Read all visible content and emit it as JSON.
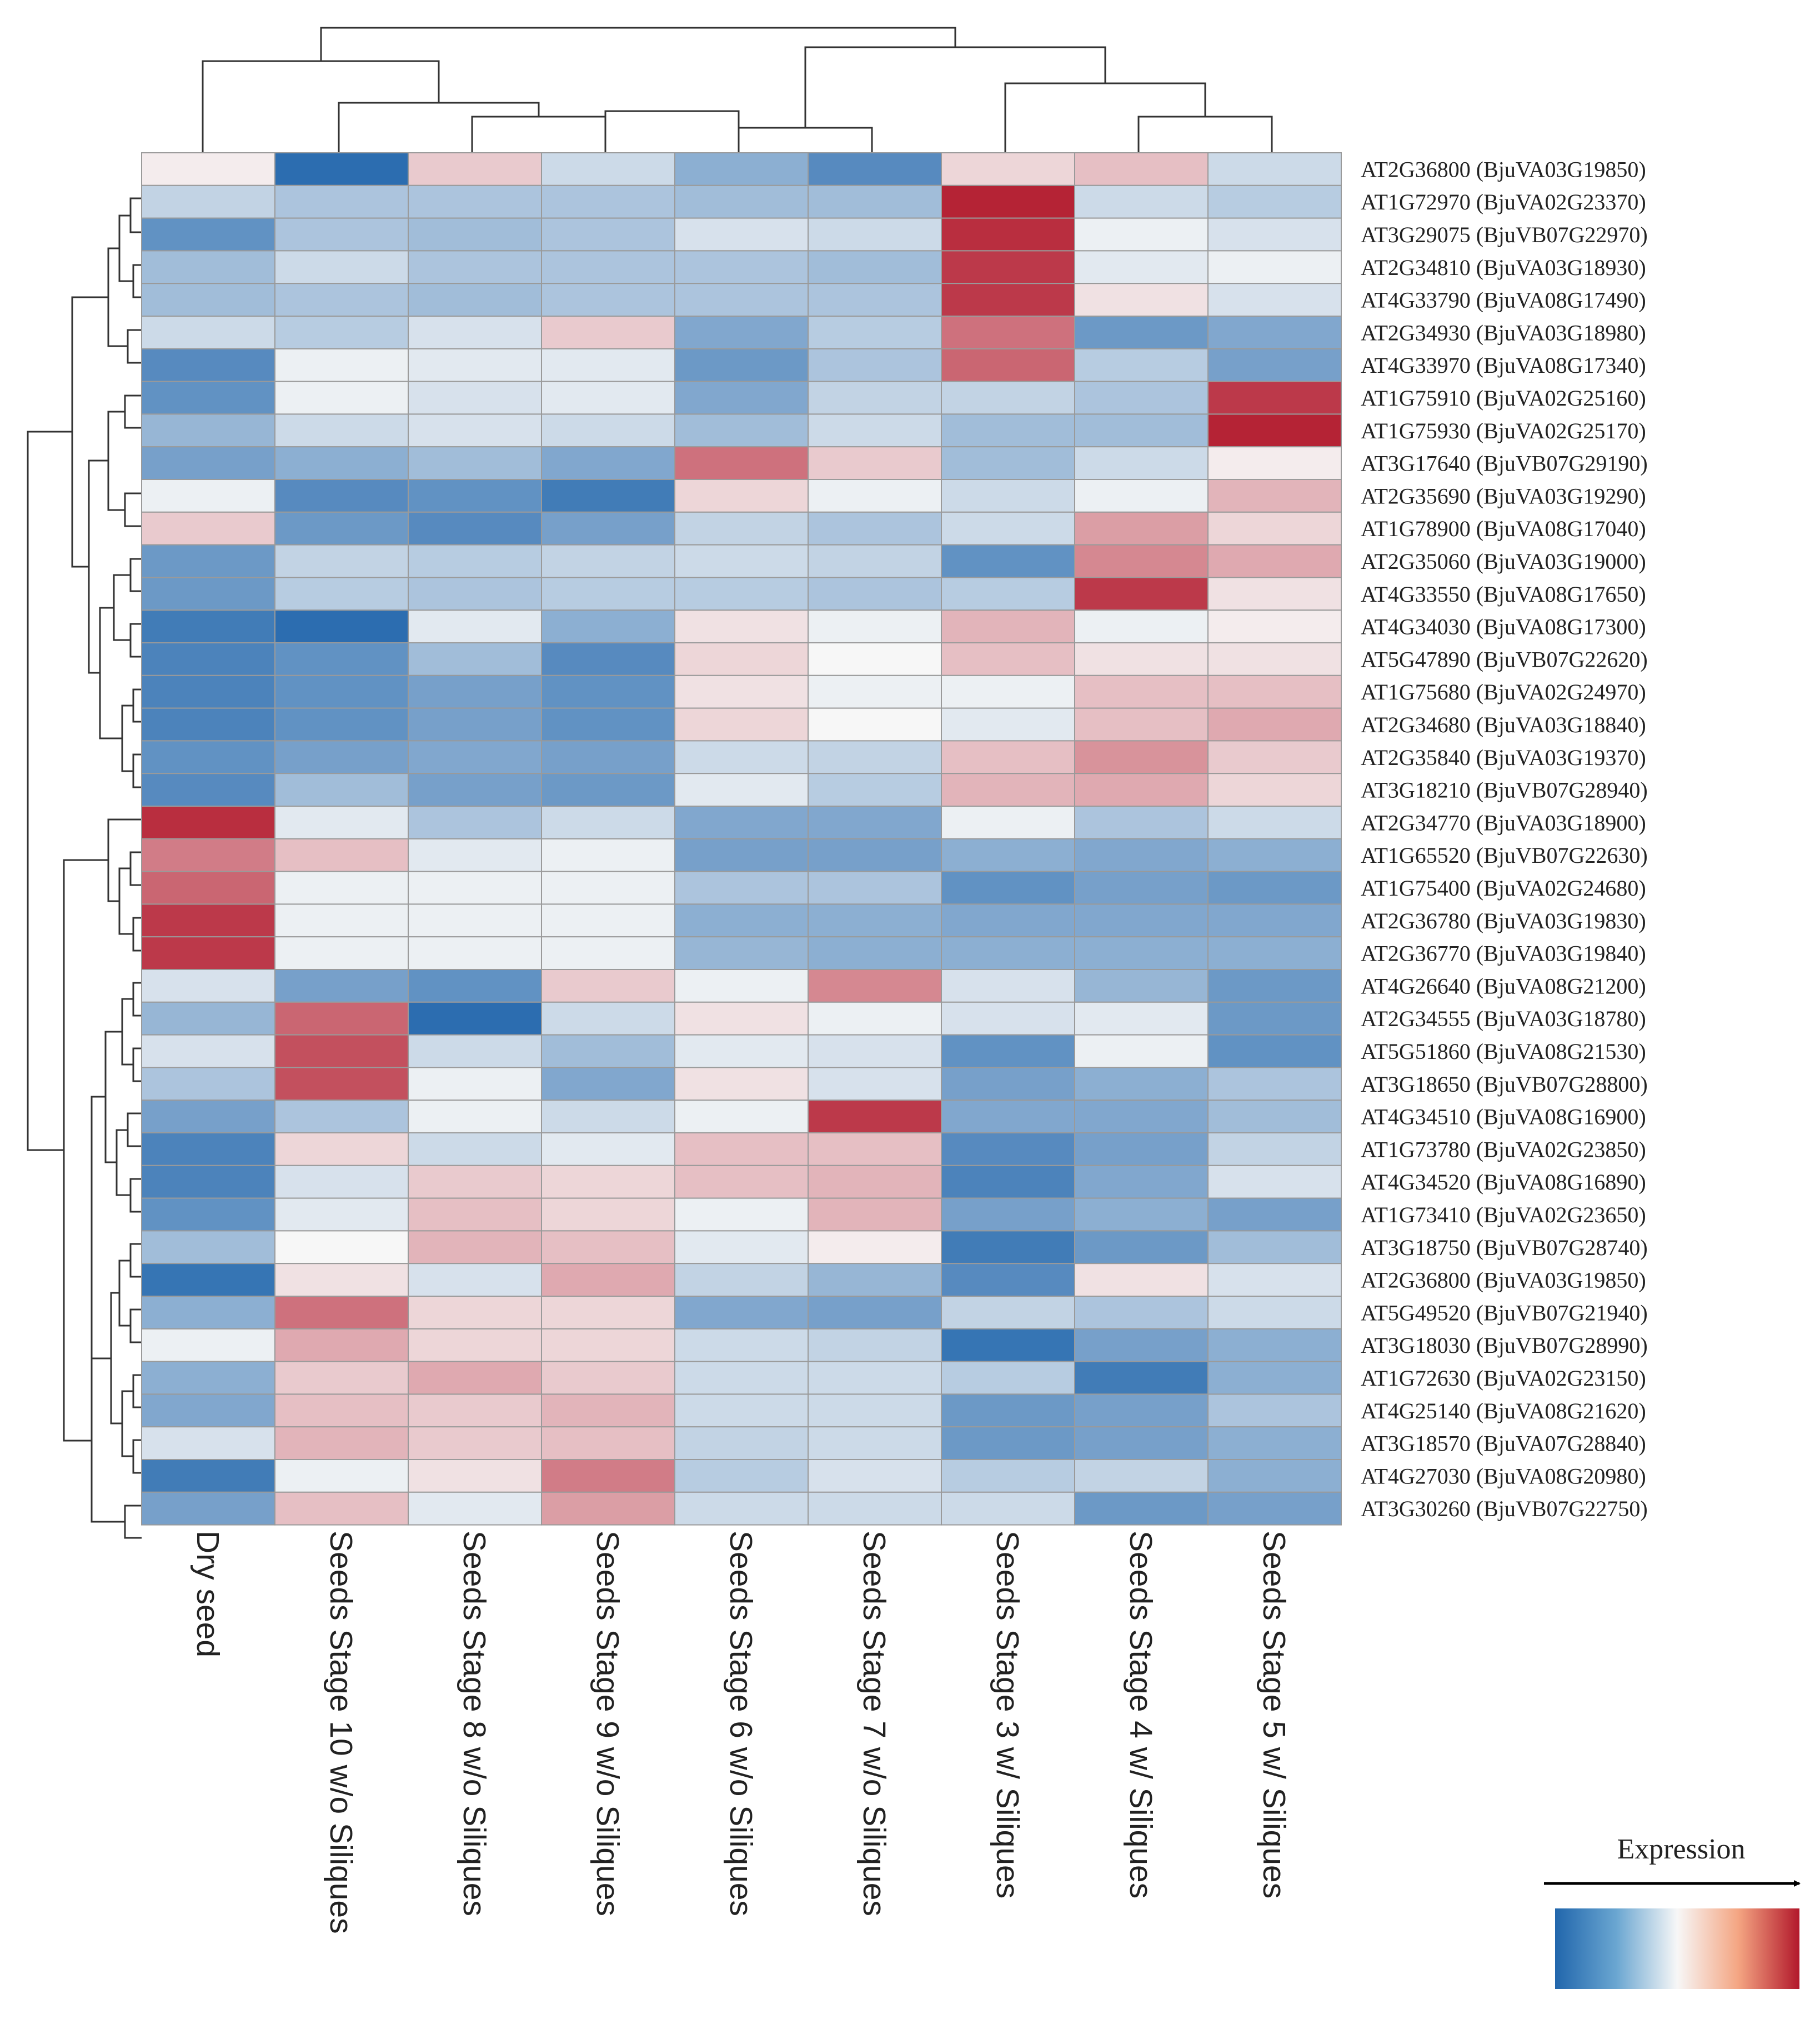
{
  "chart_data": {
    "type": "heatmap",
    "title": "",
    "legend_title": "Expression",
    "legend_position": "bottom-right",
    "color_scale": {
      "low": "#2166ac",
      "mid": "#f7f7f7",
      "high": "#b2182b"
    },
    "value_range": [
      -1,
      1
    ],
    "columns": [
      "Dry seed",
      "Seeds Stage 10 w/o Siliques",
      "Seeds Stage 8 w/o Siliques",
      "Seeds Stage 9 w/o Siliques",
      "Seeds Stage 6 w/o Siliques",
      "Seeds Stage 7 w/o Siliques",
      "Seeds Stage 3 w/ Siliques",
      "Seeds Stage 4 w/ Siliques",
      "Seeds Stage 5 w/ Siliques"
    ],
    "rows": [
      "AT2G36800 (BjuVA03G19850)",
      "AT1G72970 (BjuVA02G23370)",
      "AT3G29075 (BjuVB07G22970)",
      "AT2G34810 (BjuVA03G18930)",
      "AT4G33790 (BjuVA08G17490)",
      "AT2G34930 (BjuVA03G18980)",
      "AT4G33970 (BjuVA08G17340)",
      "AT1G75910 (BjuVA02G25160)",
      "AT1G75930 (BjuVA02G25170)",
      "AT3G17640 (BjuVB07G29190)",
      "AT2G35690 (BjuVA03G19290)",
      "AT1G78900 (BjuVA08G17040)",
      "AT2G35060 (BjuVA03G19000)",
      "AT4G33550 (BjuVA08G17650)",
      "AT4G34030 (BjuVA08G17300)",
      "AT5G47890 (BjuVB07G22620)",
      "AT1G75680 (BjuVA02G24970)",
      "AT2G34680 (BjuVA03G18840)",
      "AT2G35840 (BjuVA03G19370)",
      "AT3G18210 (BjuVB07G28940)",
      "AT2G34770 (BjuVA03G18900)",
      "AT1G65520 (BjuVB07G22630)",
      "AT1G75400 (BjuVA02G24680)",
      "AT2G36780 (BjuVA03G19830)",
      "AT2G36770 (BjuVA03G19840)",
      "AT4G26640 (BjuVA08G21200)",
      "AT2G34555 (BjuVA03G18780)",
      "AT5G51860 (BjuVA08G21530)",
      "AT3G18650 (BjuVB07G28800)",
      "AT4G34510 (BjuVA08G16900)",
      "AT1G73780 (BjuVA02G23850)",
      "AT4G34520 (BjuVA08G16890)",
      "AT1G73410 (BjuVA02G23650)",
      "AT3G18750 (BjuVB07G28740)",
      "AT2G36800 (BjuVA03G19850)",
      "AT5G49520 (BjuVB07G21940)",
      "AT3G18030 (BjuVB07G28990)",
      "AT1G72630 (BjuVA02G23150)",
      "AT4G25140 (BjuVA08G21620)",
      "AT3G18570 (BjuVA07G28840)",
      "AT4G27030 (BjuVA08G20980)",
      "AT3G30260 (BjuVB07G22750)"
    ],
    "values": [
      [
        0.05,
        -0.95,
        0.2,
        -0.2,
        -0.5,
        -0.75,
        0.15,
        0.25,
        -0.2
      ],
      [
        -0.25,
        -0.35,
        -0.35,
        -0.35,
        -0.4,
        -0.4,
        0.95,
        -0.2,
        -0.3
      ],
      [
        -0.7,
        -0.35,
        -0.4,
        -0.35,
        -0.15,
        -0.2,
        0.9,
        -0.05,
        -0.15
      ],
      [
        -0.4,
        -0.2,
        -0.35,
        -0.35,
        -0.35,
        -0.4,
        0.85,
        -0.1,
        -0.05
      ],
      [
        -0.4,
        -0.35,
        -0.4,
        -0.35,
        -0.35,
        -0.35,
        0.85,
        0.1,
        -0.15
      ],
      [
        -0.2,
        -0.3,
        -0.15,
        0.2,
        -0.55,
        -0.3,
        0.6,
        -0.65,
        -0.55
      ],
      [
        -0.75,
        -0.05,
        -0.1,
        -0.1,
        -0.65,
        -0.35,
        0.65,
        -0.3,
        -0.6
      ],
      [
        -0.7,
        -0.05,
        -0.15,
        -0.1,
        -0.55,
        -0.25,
        -0.25,
        -0.35,
        0.85
      ],
      [
        -0.45,
        -0.2,
        -0.15,
        -0.2,
        -0.4,
        -0.2,
        -0.4,
        -0.4,
        0.95
      ],
      [
        -0.6,
        -0.5,
        -0.4,
        -0.55,
        0.6,
        0.2,
        -0.4,
        -0.2,
        0.05
      ],
      [
        -0.05,
        -0.75,
        -0.7,
        -0.85,
        0.15,
        -0.05,
        -0.2,
        -0.05,
        0.3
      ],
      [
        0.2,
        -0.65,
        -0.75,
        -0.6,
        -0.25,
        -0.35,
        -0.2,
        0.4,
        0.15
      ],
      [
        -0.65,
        -0.25,
        -0.3,
        -0.25,
        -0.2,
        -0.25,
        -0.7,
        0.5,
        0.35
      ],
      [
        -0.65,
        -0.3,
        -0.35,
        -0.3,
        -0.3,
        -0.35,
        -0.3,
        0.85,
        0.1
      ],
      [
        -0.85,
        -0.95,
        -0.1,
        -0.5,
        0.1,
        -0.05,
        0.3,
        -0.05,
        0.05
      ],
      [
        -0.8,
        -0.7,
        -0.4,
        -0.75,
        0.15,
        0.0,
        0.25,
        0.1,
        0.1
      ],
      [
        -0.8,
        -0.7,
        -0.6,
        -0.7,
        0.1,
        -0.05,
        -0.05,
        0.25,
        0.25
      ],
      [
        -0.8,
        -0.7,
        -0.6,
        -0.7,
        0.15,
        0.0,
        -0.1,
        0.25,
        0.35
      ],
      [
        -0.7,
        -0.6,
        -0.55,
        -0.6,
        -0.2,
        -0.25,
        0.25,
        0.45,
        0.2
      ],
      [
        -0.75,
        -0.4,
        -0.6,
        -0.65,
        -0.1,
        -0.3,
        0.3,
        0.35,
        0.15
      ],
      [
        0.9,
        -0.1,
        -0.35,
        -0.2,
        -0.55,
        -0.55,
        -0.05,
        -0.35,
        -0.2
      ],
      [
        0.55,
        0.25,
        -0.1,
        -0.05,
        -0.6,
        -0.6,
        -0.5,
        -0.55,
        -0.5
      ],
      [
        0.65,
        -0.05,
        -0.05,
        -0.05,
        -0.35,
        -0.35,
        -0.7,
        -0.6,
        -0.65
      ],
      [
        0.85,
        -0.05,
        -0.05,
        -0.05,
        -0.5,
        -0.5,
        -0.55,
        -0.55,
        -0.55
      ],
      [
        0.85,
        -0.05,
        -0.05,
        -0.05,
        -0.45,
        -0.5,
        -0.5,
        -0.5,
        -0.5
      ],
      [
        -0.15,
        -0.6,
        -0.7,
        0.2,
        -0.05,
        0.5,
        -0.15,
        -0.45,
        -0.65
      ],
      [
        -0.45,
        0.65,
        -0.95,
        -0.2,
        0.1,
        -0.05,
        -0.15,
        -0.1,
        -0.65
      ],
      [
        -0.15,
        0.75,
        -0.2,
        -0.4,
        -0.1,
        -0.15,
        -0.7,
        -0.05,
        -0.7
      ],
      [
        -0.35,
        0.75,
        -0.05,
        -0.55,
        0.1,
        -0.15,
        -0.6,
        -0.5,
        -0.35
      ],
      [
        -0.6,
        -0.35,
        -0.05,
        -0.2,
        -0.05,
        0.85,
        -0.55,
        -0.55,
        -0.4
      ],
      [
        -0.8,
        0.15,
        -0.2,
        -0.1,
        0.25,
        0.25,
        -0.75,
        -0.6,
        -0.25
      ],
      [
        -0.8,
        -0.15,
        0.2,
        0.15,
        0.25,
        0.3,
        -0.8,
        -0.55,
        -0.15
      ],
      [
        -0.7,
        -0.1,
        0.25,
        0.15,
        -0.05,
        0.3,
        -0.6,
        -0.5,
        -0.6
      ],
      [
        -0.4,
        0.0,
        0.3,
        0.25,
        -0.1,
        0.05,
        -0.85,
        -0.65,
        -0.4
      ],
      [
        -0.9,
        0.1,
        -0.15,
        0.35,
        -0.25,
        -0.45,
        -0.75,
        0.1,
        -0.15
      ],
      [
        -0.5,
        0.6,
        0.15,
        0.15,
        -0.55,
        -0.6,
        -0.25,
        -0.35,
        -0.2
      ],
      [
        -0.05,
        0.35,
        0.15,
        0.15,
        -0.2,
        -0.25,
        -0.9,
        -0.6,
        -0.5
      ],
      [
        -0.5,
        0.2,
        0.35,
        0.2,
        -0.2,
        -0.2,
        -0.3,
        -0.85,
        -0.5
      ],
      [
        -0.55,
        0.25,
        0.2,
        0.3,
        -0.2,
        -0.2,
        -0.65,
        -0.6,
        -0.35
      ],
      [
        -0.15,
        0.3,
        0.2,
        0.25,
        -0.25,
        -0.2,
        -0.65,
        -0.6,
        -0.5
      ],
      [
        -0.85,
        -0.05,
        0.1,
        0.55,
        -0.3,
        -0.15,
        -0.3,
        -0.25,
        -0.5
      ],
      [
        -0.6,
        0.25,
        -0.1,
        0.4,
        -0.2,
        -0.2,
        -0.2,
        -0.65,
        -0.6
      ]
    ]
  }
}
